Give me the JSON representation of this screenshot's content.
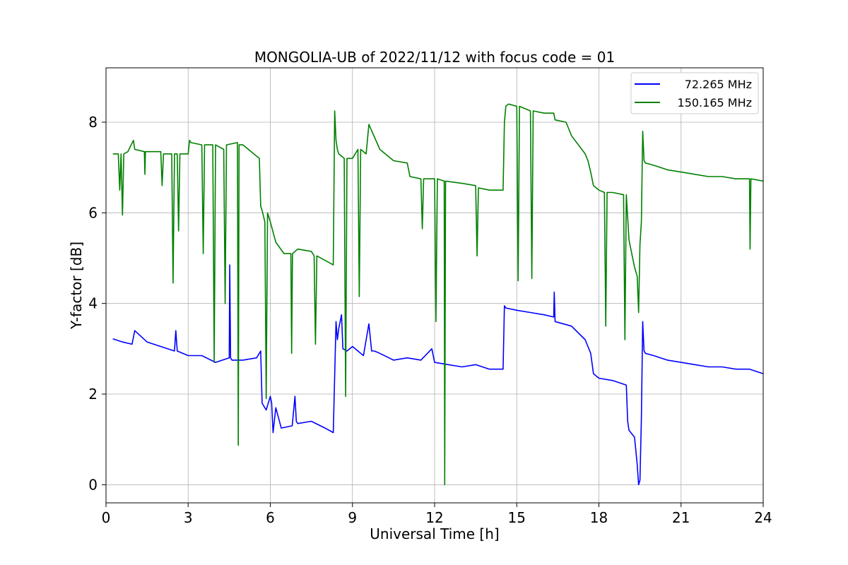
{
  "chart_data": {
    "type": "line",
    "title": "MONGOLIA-UB of 2022/11/12 with focus code = 01",
    "xlabel": "Universal Time [h]",
    "ylabel": "Y-factor [dB]",
    "xlim": [
      0,
      24
    ],
    "ylim": [
      -0.4,
      9.2
    ],
    "xticks": [
      0,
      3,
      6,
      9,
      12,
      15,
      18,
      21,
      24
    ],
    "yticks": [
      0,
      2,
      4,
      6,
      8
    ],
    "grid": true,
    "legend_position": "top-right",
    "series": [
      {
        "name": "72.265 MHz",
        "color": "#0000ff",
        "x": [
          0.25,
          0.6,
          0.95,
          1.05,
          1.5,
          2.0,
          2.5,
          2.55,
          2.6,
          3.0,
          3.5,
          4.0,
          4.5,
          4.52,
          4.55,
          4.6,
          5.0,
          5.5,
          5.65,
          5.7,
          5.75,
          5.85,
          6.0,
          6.05,
          6.1,
          6.2,
          6.4,
          6.8,
          6.9,
          6.95,
          7.0,
          7.5,
          8.0,
          8.3,
          8.35,
          8.4,
          8.45,
          8.5,
          8.6,
          8.65,
          8.8,
          9.0,
          9.4,
          9.6,
          9.7,
          9.8,
          10.0,
          10.5,
          11.0,
          11.5,
          11.9,
          12.0,
          12.5,
          13.0,
          13.5,
          14.0,
          14.5,
          14.55,
          14.6,
          15.0,
          15.5,
          16.0,
          16.35,
          16.37,
          16.4,
          17.0,
          17.5,
          17.7,
          17.8,
          18.0,
          18.5,
          19.0,
          19.05,
          19.1,
          19.3,
          19.4,
          19.45,
          19.5,
          19.55,
          19.6,
          19.65,
          19.7,
          20.0,
          20.5,
          21.0,
          21.5,
          22.0,
          22.5,
          23.0,
          23.5,
          24.0
        ],
        "y": [
          3.22,
          3.15,
          3.1,
          3.4,
          3.15,
          3.05,
          2.95,
          3.4,
          2.95,
          2.85,
          2.85,
          2.7,
          2.8,
          4.85,
          2.8,
          2.75,
          2.75,
          2.8,
          2.95,
          1.8,
          1.75,
          1.65,
          1.95,
          1.8,
          1.15,
          1.7,
          1.25,
          1.3,
          1.95,
          1.4,
          1.35,
          1.4,
          1.25,
          1.15,
          2.4,
          3.6,
          3.2,
          3.45,
          3.75,
          3.0,
          2.95,
          3.05,
          2.85,
          3.55,
          2.95,
          2.95,
          2.9,
          2.75,
          2.8,
          2.75,
          3.0,
          2.7,
          2.65,
          2.6,
          2.65,
          2.55,
          2.55,
          3.95,
          3.9,
          3.85,
          3.8,
          3.75,
          3.7,
          4.25,
          3.6,
          3.5,
          3.2,
          2.9,
          2.45,
          2.35,
          2.3,
          2.2,
          1.4,
          1.2,
          1.05,
          0.45,
          0.0,
          0.1,
          1.45,
          3.6,
          2.95,
          2.9,
          2.85,
          2.75,
          2.7,
          2.65,
          2.6,
          2.6,
          2.55,
          2.55,
          2.45
        ]
      },
      {
        "name": "150.165 MHz",
        "color": "#008000",
        "x": [
          0.25,
          0.45,
          0.5,
          0.55,
          0.6,
          0.65,
          0.8,
          1.0,
          1.05,
          1.4,
          1.42,
          1.44,
          2.0,
          2.05,
          2.1,
          2.4,
          2.45,
          2.5,
          2.6,
          2.65,
          2.7,
          3.0,
          3.05,
          3.1,
          3.5,
          3.55,
          3.6,
          3.9,
          3.95,
          4.0,
          4.3,
          4.35,
          4.4,
          4.8,
          4.83,
          4.86,
          5.0,
          5.5,
          5.6,
          5.65,
          5.7,
          5.8,
          5.85,
          5.9,
          6.0,
          6.2,
          6.5,
          6.75,
          6.78,
          6.81,
          7.0,
          7.5,
          7.6,
          7.65,
          7.7,
          8.0,
          8.3,
          8.35,
          8.4,
          8.45,
          8.5,
          8.7,
          8.75,
          8.8,
          9.0,
          9.2,
          9.25,
          9.3,
          9.5,
          9.6,
          10.0,
          10.5,
          11.0,
          11.1,
          11.5,
          11.55,
          11.6,
          12.0,
          12.05,
          12.1,
          12.35,
          12.37,
          12.4,
          13.0,
          13.5,
          13.55,
          13.6,
          14.0,
          14.5,
          14.55,
          14.6,
          14.7,
          15.0,
          15.05,
          15.1,
          15.5,
          15.55,
          15.6,
          16.0,
          16.35,
          16.4,
          16.8,
          17.0,
          17.5,
          17.6,
          17.7,
          17.75,
          17.8,
          18.0,
          18.2,
          18.25,
          18.3,
          18.5,
          18.9,
          18.95,
          19.0,
          19.1,
          19.2,
          19.3,
          19.4,
          19.45,
          19.5,
          19.55,
          19.6,
          19.65,
          19.7,
          20.0,
          20.5,
          21.0,
          21.5,
          22.0,
          22.5,
          23.0,
          23.5,
          23.52,
          23.55,
          24.0
        ],
        "y": [
          7.3,
          7.3,
          6.5,
          7.3,
          5.95,
          7.3,
          7.35,
          7.6,
          7.4,
          7.35,
          6.85,
          7.35,
          7.35,
          6.6,
          7.3,
          7.3,
          4.45,
          7.3,
          7.3,
          5.6,
          7.3,
          7.3,
          7.6,
          7.55,
          7.5,
          5.1,
          7.5,
          7.5,
          2.7,
          7.5,
          7.4,
          4.0,
          7.5,
          7.55,
          0.87,
          7.5,
          7.5,
          7.25,
          7.2,
          6.15,
          6.05,
          5.8,
          1.9,
          6.0,
          5.8,
          5.35,
          5.1,
          5.1,
          2.9,
          5.1,
          5.2,
          5.15,
          5.05,
          3.1,
          5.05,
          4.95,
          4.85,
          8.25,
          7.6,
          7.4,
          7.3,
          7.2,
          1.95,
          7.2,
          7.2,
          7.4,
          4.15,
          7.4,
          7.3,
          7.95,
          7.4,
          7.15,
          7.1,
          6.8,
          6.75,
          5.65,
          6.75,
          6.75,
          3.6,
          6.75,
          6.7,
          0.0,
          6.7,
          6.65,
          6.6,
          5.05,
          6.55,
          6.5,
          6.5,
          8.0,
          8.35,
          8.4,
          8.35,
          4.5,
          8.35,
          8.25,
          4.55,
          8.25,
          8.2,
          8.2,
          8.05,
          8.0,
          7.7,
          7.3,
          7.15,
          6.9,
          6.75,
          6.6,
          6.5,
          6.45,
          3.5,
          6.45,
          6.45,
          6.4,
          3.2,
          6.4,
          5.4,
          5.1,
          4.8,
          4.6,
          3.8,
          5.3,
          5.8,
          7.8,
          7.15,
          7.1,
          7.05,
          6.95,
          6.9,
          6.85,
          6.8,
          6.8,
          6.75,
          6.75,
          5.2,
          6.75,
          6.7
        ]
      }
    ]
  }
}
